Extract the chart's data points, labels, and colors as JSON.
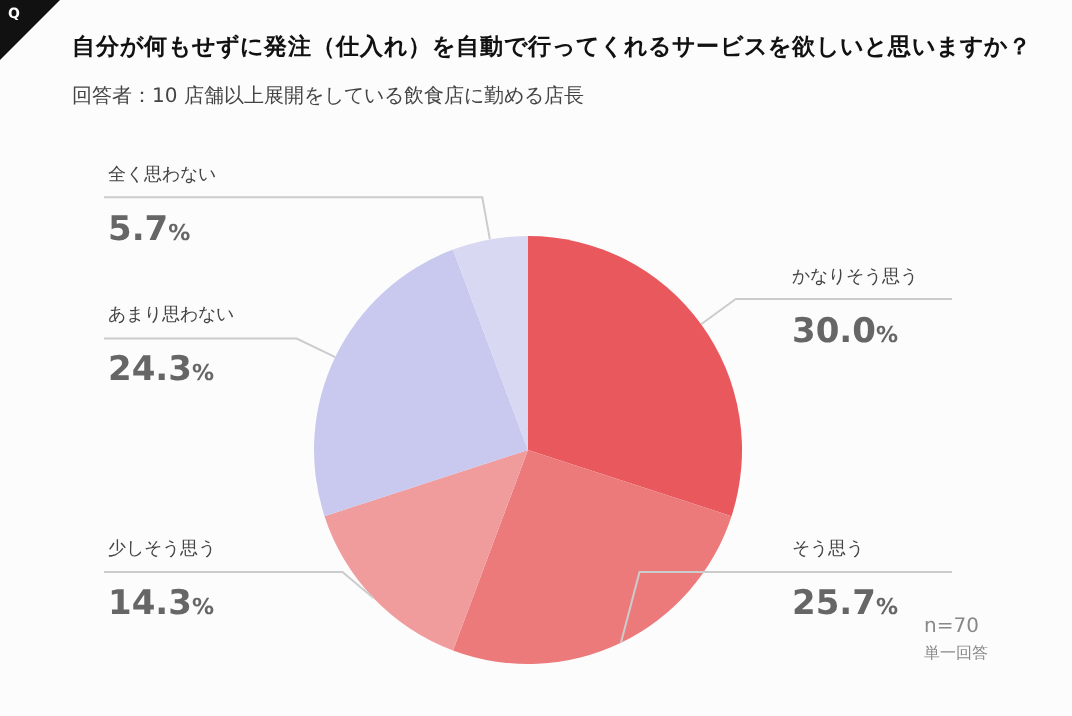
{
  "chart_data": {
    "type": "pie",
    "title": "自分が何もせずに発注（仕入れ）を自動で行ってくれるサービスを欲しいと思いますか？",
    "subtitle": "回答者：10 店舗以上展開をしている飲食店に勤める店長",
    "categories": [
      "かなりそう思う",
      "そう思う",
      "少しそう思う",
      "あまり思わない",
      "全く思わない"
    ],
    "values": [
      30.0,
      25.7,
      14.3,
      24.3,
      5.7
    ],
    "value_labels": [
      "30.0%",
      "25.7%",
      "14.3%",
      "24.3%",
      "5.7%"
    ],
    "colors": [
      "#e8585d",
      "#ec7a7b",
      "#f09c9d",
      "#c9c9f0",
      "#d8d8f3"
    ],
    "annotations": [
      "Q",
      "n=70",
      "単一回答"
    ],
    "legend": false
  }
}
